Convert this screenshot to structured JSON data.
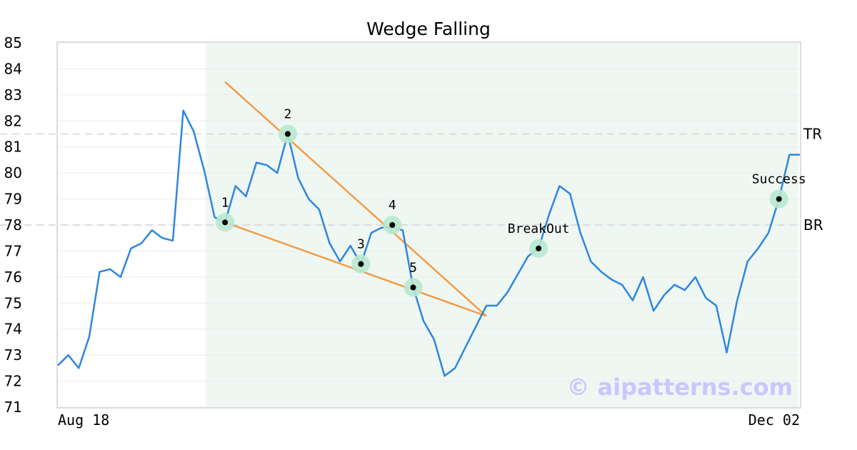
{
  "chart_data": {
    "type": "line",
    "title": "Wedge Falling",
    "xlabel": "",
    "ylabel": "",
    "ylim": [
      71,
      85
    ],
    "y_ticks": [
      "71",
      "72",
      "73",
      "74",
      "75",
      "76",
      "77",
      "78",
      "79",
      "80",
      "81",
      "82",
      "83",
      "84",
      "85"
    ],
    "x_tick_labels": [
      "Aug 18",
      "Dec 02"
    ],
    "grid": true,
    "colors": {
      "price": "#2e86de",
      "trendline": "#f39c45",
      "point_halo": "#b8e8cf",
      "point": "#000000",
      "pattern_shade": "#eff7f3",
      "reference": "#dddddd",
      "frame": "#dddddd",
      "watermark": "#c8c8ff"
    },
    "series": [
      {
        "values": [
          72.6,
          73.0,
          72.5,
          73.7,
          76.2,
          76.3,
          76.0,
          77.1,
          77.3,
          77.8,
          77.5,
          77.4,
          82.4,
          81.6,
          80.1,
          78.3,
          78.1,
          79.5,
          79.1,
          80.4,
          80.3,
          80.0,
          81.5,
          79.8,
          79.0,
          78.6,
          77.3,
          76.6,
          77.2,
          76.5,
          77.7,
          77.9,
          77.9,
          77.8,
          75.6,
          74.3,
          73.6,
          72.2,
          72.5,
          73.3,
          74.1,
          74.9,
          74.9,
          75.4,
          76.1,
          76.8,
          77.1,
          78.4,
          79.5,
          79.2,
          77.7,
          76.6,
          76.2,
          75.9,
          75.7,
          75.1,
          76.0,
          74.7,
          75.3,
          75.7,
          75.5,
          76.0,
          75.2,
          74.9,
          73.1,
          75.1,
          76.6,
          77.1,
          77.7,
          79.0,
          80.7,
          80.7
        ]
      }
    ],
    "shade_range": {
      "start": 14,
      "end": 71
    },
    "trendlines": [
      {
        "from": [
          16,
          83.5
        ],
        "to": [
          41,
          74.5
        ]
      },
      {
        "from": [
          16,
          78.1
        ],
        "to": [
          41,
          74.5
        ]
      }
    ],
    "reference_lines": [
      {
        "label": "TR",
        "y": 81.5
      },
      {
        "label": "BR",
        "y": 78.0
      }
    ],
    "annotations": [
      {
        "label": "1",
        "x": 16,
        "y": 78.1
      },
      {
        "label": "2",
        "x": 22,
        "y": 81.5
      },
      {
        "label": "3",
        "x": 29,
        "y": 76.5
      },
      {
        "label": "4",
        "x": 32,
        "y": 78.0
      },
      {
        "label": "5",
        "x": 34,
        "y": 75.6
      },
      {
        "label": "BreakOut",
        "x": 46,
        "y": 77.1
      },
      {
        "label": "Success",
        "x": 69,
        "y": 79.0
      }
    ],
    "watermark": "© aipatterns.com"
  }
}
